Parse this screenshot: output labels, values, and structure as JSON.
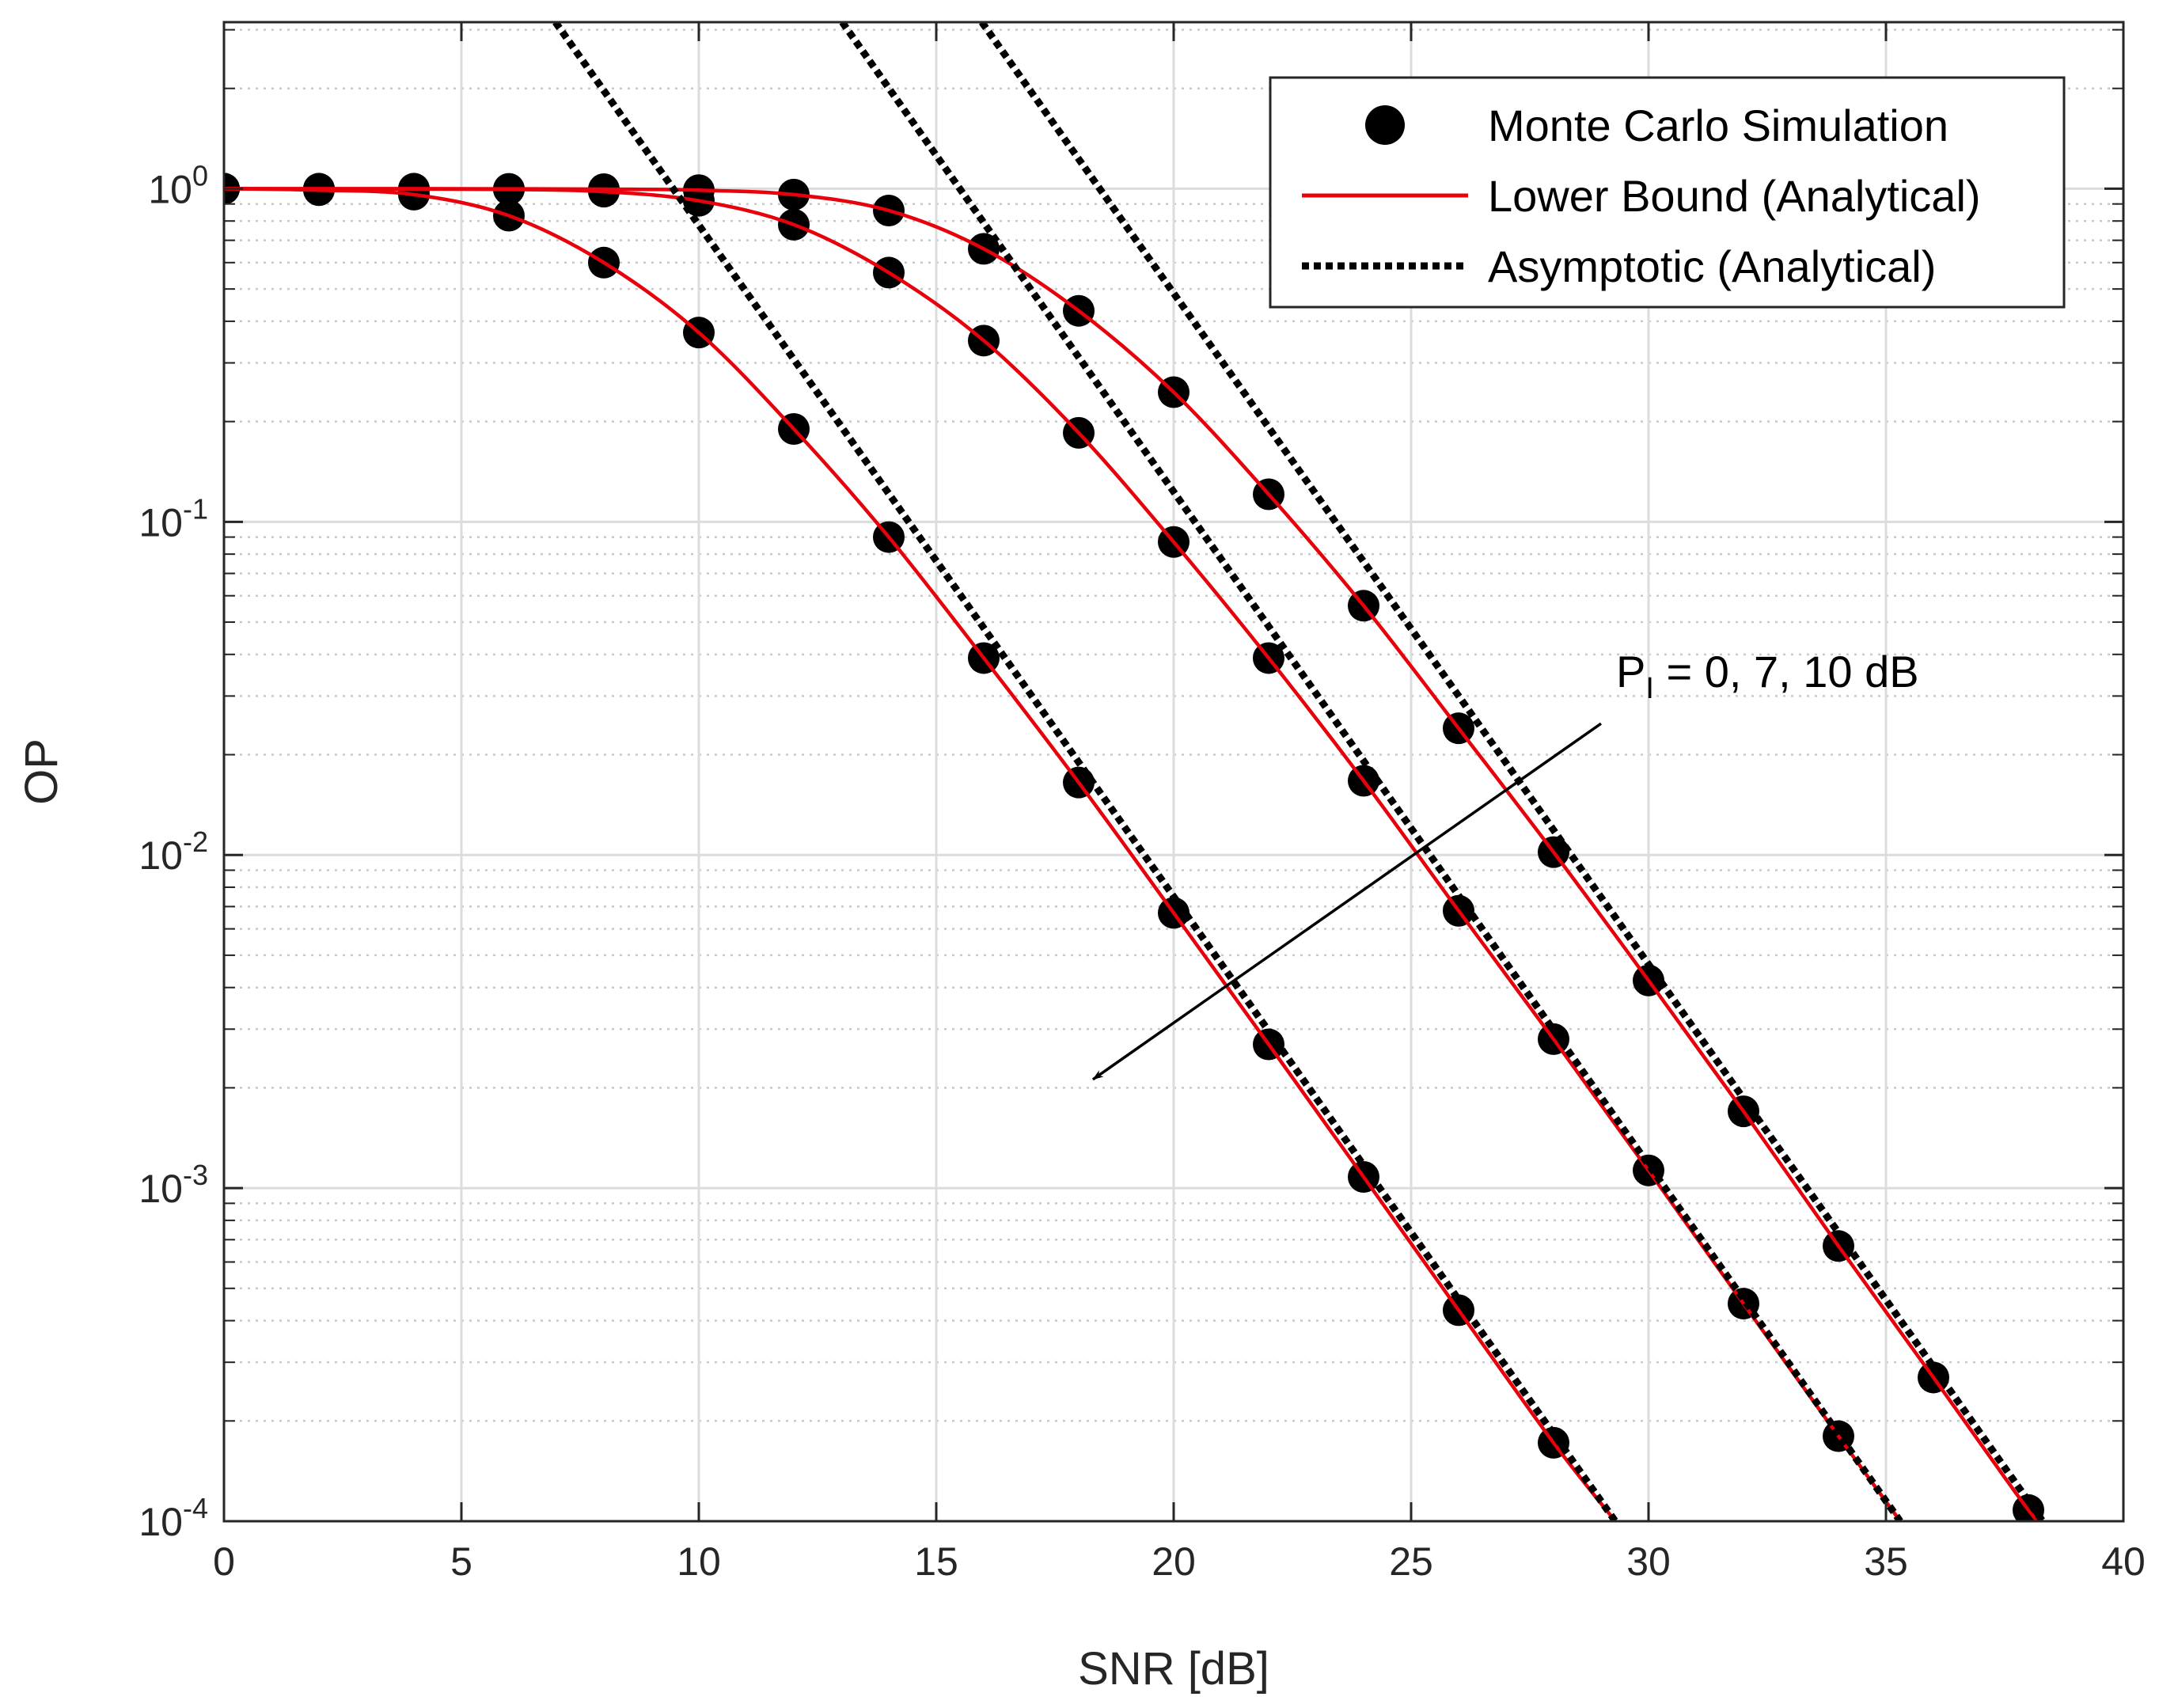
{
  "chart_data": {
    "type": "line",
    "title": "",
    "xlabel": "SNR [dB]",
    "ylabel": "OP",
    "xlim": [
      0,
      40
    ],
    "ylim": [
      0.0001,
      3.162
    ],
    "yscale": "log",
    "grid": true,
    "legend_position": "top-right",
    "xticks": [
      0,
      5,
      10,
      15,
      20,
      25,
      30,
      35,
      40
    ],
    "xtick_labels": [
      "0",
      "5",
      "10",
      "15",
      "20",
      "25",
      "30",
      "35",
      "40"
    ],
    "yticks": [
      {
        "value": 1,
        "base": "10",
        "exp": "0"
      },
      {
        "value": 0.1,
        "base": "10",
        "exp": "-1"
      },
      {
        "value": 0.01,
        "base": "10",
        "exp": "-2"
      },
      {
        "value": 0.001,
        "base": "10",
        "exp": "-3"
      },
      {
        "value": 0.0001,
        "base": "10",
        "exp": "-4"
      }
    ],
    "legend": [
      {
        "label": "Monte Carlo Simulation",
        "style": "marker"
      },
      {
        "label": "Lower Bound (Analytical)",
        "style": "solid-red"
      },
      {
        "label": "Asymptotic (Analytical)",
        "style": "dotted-black"
      }
    ],
    "annotation": {
      "prefix": "P",
      "subscript": "I",
      "suffix": " = 0, 7, 10 dB",
      "arrow_from": {
        "x": 29,
        "y": 0.0248
      },
      "arrow_to": {
        "x": 18.3,
        "y": 0.00212
      }
    },
    "series": [
      {
        "name": "P_I = 0 dB",
        "lower_bound": {
          "x": [
            0,
            2,
            4,
            6,
            8,
            10,
            12,
            14,
            16,
            18,
            20,
            22,
            24,
            26,
            28,
            29.3
          ],
          "y": [
            1,
            0.99,
            0.96,
            0.83,
            0.6,
            0.37,
            0.19,
            0.09,
            0.039,
            0.0165,
            0.0067,
            0.0027,
            0.00108,
            0.00043,
            0.000172,
            0.0001
          ]
        },
        "monte_carlo": {
          "x": [
            0,
            2,
            4,
            6,
            8,
            10,
            12,
            14,
            16,
            18,
            20,
            22,
            24,
            26,
            28
          ],
          "y": [
            1,
            0.99,
            0.96,
            0.83,
            0.6,
            0.37,
            0.19,
            0.09,
            0.039,
            0.0165,
            0.0067,
            0.0027,
            0.00108,
            0.00043,
            0.000172
          ]
        },
        "asymptotic": {
          "x": [
            6.98,
            29.3
          ],
          "y": [
            3.162,
            0.0001
          ]
        }
      },
      {
        "name": "P_I = 7 dB",
        "lower_bound": {
          "x": [
            0,
            2,
            4,
            6,
            8,
            10,
            12,
            14,
            16,
            18,
            20,
            22,
            24,
            26,
            28,
            30,
            32,
            34,
            35.3
          ],
          "y": [
            1,
            0.999,
            0.998,
            0.995,
            0.98,
            0.92,
            0.78,
            0.56,
            0.35,
            0.185,
            0.087,
            0.039,
            0.0167,
            0.0068,
            0.0028,
            0.00113,
            0.00045,
            0.00018,
            0.0001
          ]
        },
        "monte_carlo": {
          "x": [
            0,
            2,
            4,
            6,
            8,
            10,
            12,
            14,
            16,
            18,
            20,
            22,
            24,
            26,
            28,
            30,
            32,
            34
          ],
          "y": [
            1,
            0.999,
            0.998,
            0.995,
            0.98,
            0.92,
            0.78,
            0.56,
            0.35,
            0.185,
            0.087,
            0.039,
            0.0167,
            0.0068,
            0.0028,
            0.00113,
            0.00045,
            0.00018
          ]
        },
        "asymptotic": {
          "x": [
            13.02,
            35.3
          ],
          "y": [
            3.162,
            0.0001
          ]
        }
      },
      {
        "name": "P_I = 10 dB",
        "lower_bound": {
          "x": [
            0,
            2,
            4,
            6,
            8,
            10,
            12,
            14,
            16,
            18,
            20,
            22,
            24,
            26,
            28,
            30,
            32,
            34,
            36,
            38,
            38.3
          ],
          "y": [
            1,
            1,
            1,
            0.999,
            0.997,
            0.99,
            0.96,
            0.86,
            0.66,
            0.43,
            0.245,
            0.121,
            0.056,
            0.024,
            0.0102,
            0.0042,
            0.0017,
            0.00067,
            0.00027,
            0.000108,
            0.0001
          ]
        },
        "monte_carlo": {
          "x": [
            0,
            2,
            4,
            6,
            8,
            10,
            12,
            14,
            16,
            18,
            20,
            22,
            24,
            26,
            28,
            30,
            32,
            34,
            36,
            38
          ],
          "y": [
            1,
            1,
            1,
            0.999,
            0.997,
            0.99,
            0.96,
            0.86,
            0.66,
            0.43,
            0.245,
            0.121,
            0.056,
            0.024,
            0.0102,
            0.0042,
            0.0017,
            0.00067,
            0.00027,
            0.000108
          ]
        },
        "asymptotic": {
          "x": [
            15.96,
            38.3
          ],
          "y": [
            3.162,
            0.0001
          ]
        }
      }
    ]
  }
}
